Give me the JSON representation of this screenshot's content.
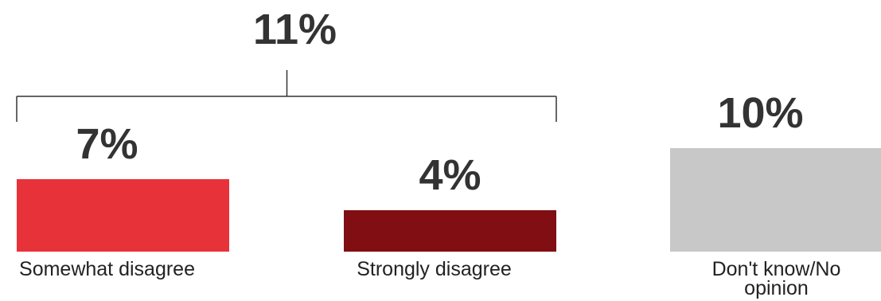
{
  "chart_data": {
    "type": "bar",
    "categories": [
      "Somewhat disagree",
      "Strongly disagree",
      "Don't know/No opinion"
    ],
    "values": [
      7,
      4,
      10
    ],
    "value_labels": [
      "7%",
      "4%",
      "10%"
    ],
    "colors": [
      "#e8323a",
      "#800e12",
      "#c8c8c8"
    ],
    "unit": "%",
    "group_total": {
      "label": "11%",
      "value": 11,
      "members": [
        "Somewhat disagree",
        "Strongly disagree"
      ]
    },
    "category_lines": [
      [
        "Somewhat disagree"
      ],
      [
        "Strongly disagree"
      ],
      [
        "Don't know/No",
        "opinion"
      ]
    ],
    "title": "",
    "xlabel": "",
    "ylabel": "",
    "grid": false,
    "legend": "none"
  }
}
